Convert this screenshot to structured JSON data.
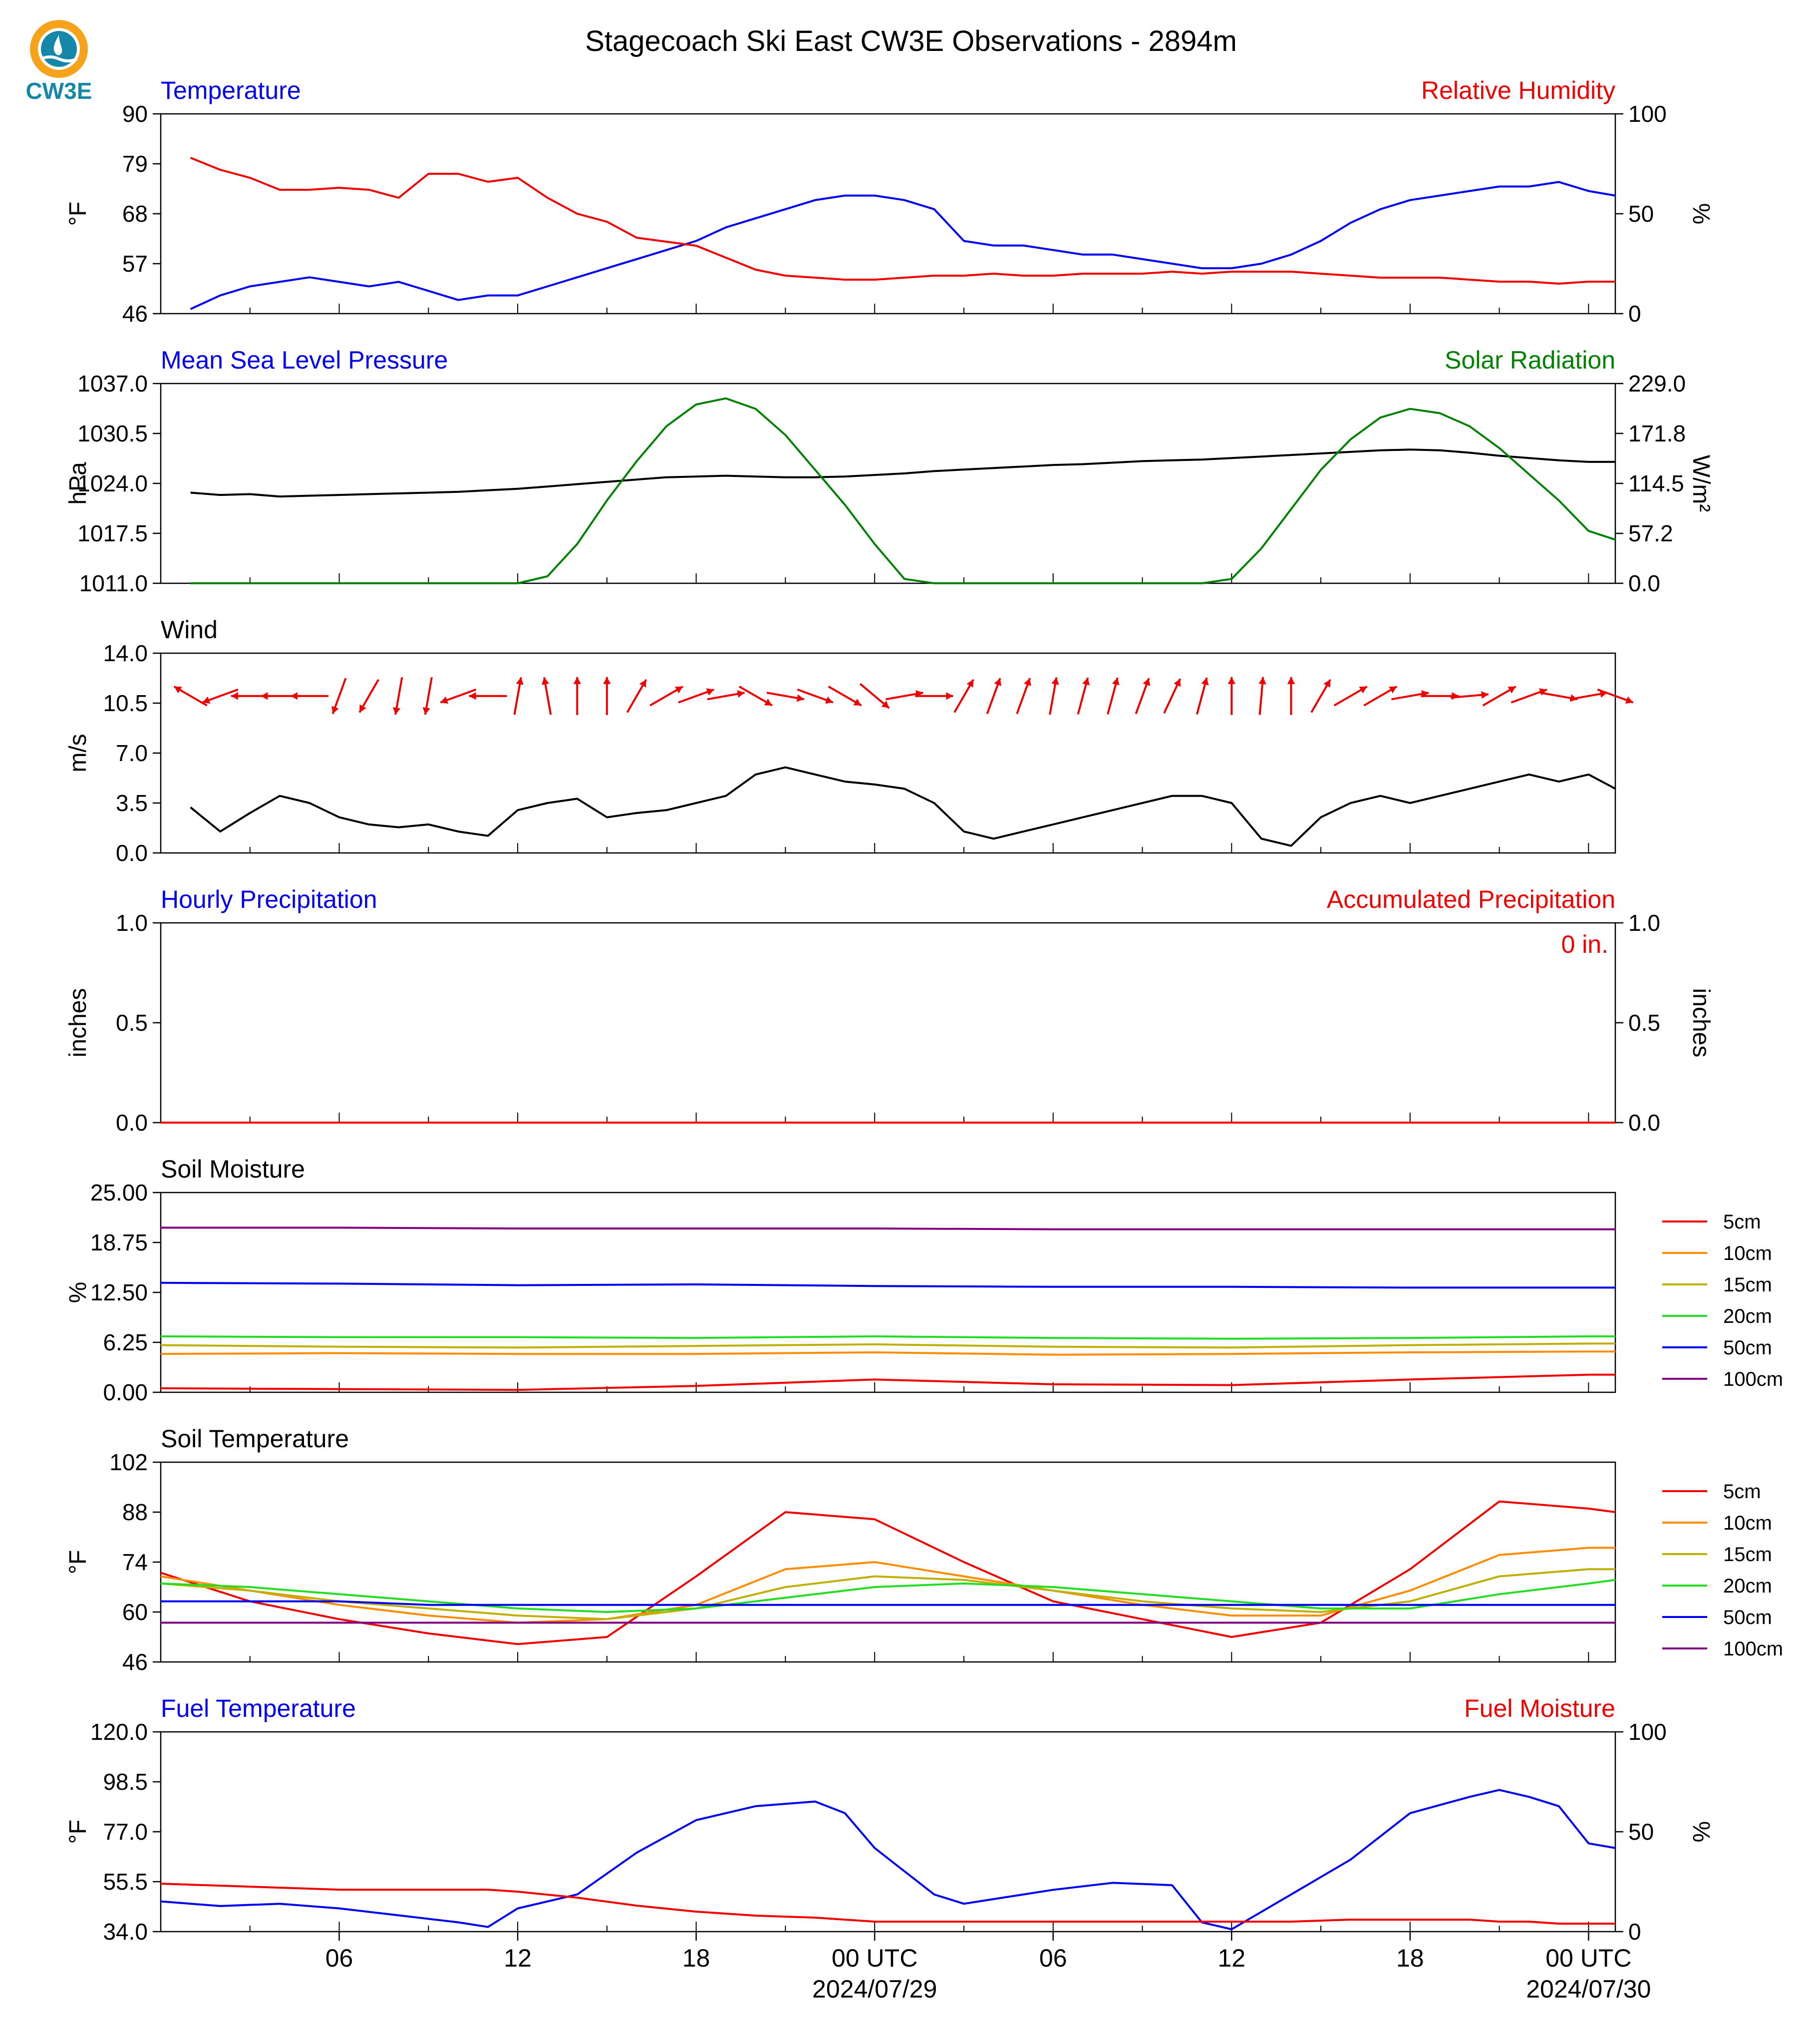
{
  "page": {
    "title": "Stagecoach Ski East CW3E Observations - 2894m",
    "logo_text": "CW3E",
    "x_ticks": [
      {
        "label": "06",
        "hour": 6
      },
      {
        "label": "12",
        "hour": 12
      },
      {
        "label": "18",
        "hour": 18
      },
      {
        "label": "00 UTC",
        "hour": 24,
        "date": "2024/07/29"
      },
      {
        "label": "06",
        "hour": 30
      },
      {
        "label": "12",
        "hour": 36
      },
      {
        "label": "18",
        "hour": 42
      },
      {
        "label": "00 UTC",
        "hour": 48,
        "date": "2024/07/30"
      }
    ]
  },
  "chart_data": [
    {
      "id": "temp-rh",
      "type": "line",
      "left_title": "Temperature",
      "right_title": "Relative Humidity",
      "ylabel_left": "°F",
      "ylabel_right": "%",
      "yticks_left": [
        "46",
        "57",
        "68",
        "79",
        "90"
      ],
      "yticks_right": [
        "0",
        "50",
        "100"
      ],
      "ylim_left": [
        46,
        90
      ],
      "ylim_right": [
        0,
        100
      ],
      "x": [
        1,
        2,
        3,
        4,
        5,
        6,
        7,
        8,
        9,
        10,
        11,
        12,
        13,
        14,
        15,
        16,
        17,
        18,
        19,
        20,
        21,
        22,
        23,
        24,
        25,
        26,
        27,
        28,
        29,
        30,
        31,
        32,
        33,
        34,
        35,
        36,
        37,
        38,
        39,
        40,
        41,
        42,
        43,
        44,
        45,
        46,
        47,
        48,
        48.9
      ],
      "series": [
        {
          "name": "Temperature",
          "axis": "left",
          "color": "#0000ee",
          "values": [
            47,
            50,
            52,
            53,
            54,
            53,
            52,
            53,
            51,
            49,
            50,
            50,
            52,
            54,
            56,
            58,
            60,
            62,
            65,
            67,
            69,
            71,
            72,
            72,
            71,
            69,
            62,
            61,
            61,
            60,
            59,
            59,
            58,
            57,
            56,
            56,
            57,
            59,
            62,
            66,
            69,
            71,
            72,
            73,
            74,
            74,
            75,
            73,
            72
          ]
        },
        {
          "name": "Relative Humidity",
          "axis": "right",
          "color": "#ee0000",
          "values": [
            78,
            72,
            68,
            62,
            62,
            63,
            62,
            58,
            70,
            70,
            66,
            68,
            58,
            50,
            46,
            38,
            36,
            34,
            28,
            22,
            19,
            18,
            17,
            17,
            18,
            19,
            19,
            20,
            19,
            19,
            20,
            20,
            20,
            21,
            20,
            21,
            21,
            21,
            20,
            19,
            18,
            18,
            18,
            17,
            16,
            16,
            15,
            16,
            16
          ]
        }
      ]
    },
    {
      "id": "pressure-solar",
      "type": "line",
      "left_title": "Mean Sea Level Pressure",
      "right_title": "Solar Radiation",
      "ylabel_left": "hPa",
      "ylabel_right": "W/m²",
      "yticks_left": [
        "1011.0",
        "1017.5",
        "1024.0",
        "1030.5",
        "1037.0"
      ],
      "yticks_right": [
        "0.0",
        "57.2",
        "114.5",
        "171.8",
        "229.0"
      ],
      "ylim_left": [
        1011.0,
        1037.0
      ],
      "ylim_right": [
        0.0,
        229.0
      ],
      "x": [
        1,
        2,
        3,
        4,
        5,
        6,
        7,
        8,
        9,
        10,
        11,
        12,
        13,
        14,
        15,
        16,
        17,
        18,
        19,
        20,
        21,
        22,
        23,
        24,
        25,
        26,
        27,
        28,
        29,
        30,
        31,
        32,
        33,
        34,
        35,
        36,
        37,
        38,
        39,
        40,
        41,
        42,
        43,
        44,
        45,
        46,
        47,
        48,
        48.9
      ],
      "series": [
        {
          "name": "Mean Sea Level Pressure",
          "axis": "left",
          "color": "#000000",
          "values": [
            1022.8,
            1022.5,
            1022.6,
            1022.3,
            1022.4,
            1022.5,
            1022.6,
            1022.7,
            1022.8,
            1022.9,
            1023.1,
            1023.3,
            1023.6,
            1023.9,
            1024.2,
            1024.5,
            1024.8,
            1024.9,
            1025.0,
            1024.9,
            1024.8,
            1024.8,
            1024.9,
            1025.1,
            1025.3,
            1025.6,
            1025.8,
            1026.0,
            1026.2,
            1026.4,
            1026.5,
            1026.7,
            1026.9,
            1027.0,
            1027.1,
            1027.3,
            1027.5,
            1027.7,
            1027.9,
            1028.1,
            1028.3,
            1028.4,
            1028.3,
            1028.0,
            1027.6,
            1027.3,
            1027.0,
            1026.8,
            1026.8
          ]
        },
        {
          "name": "Solar Radiation",
          "axis": "right",
          "color": "#008000",
          "values": [
            0,
            0,
            0,
            0,
            0,
            0,
            0,
            0,
            0,
            0,
            0,
            0,
            8,
            45,
            95,
            140,
            180,
            205,
            212,
            200,
            170,
            130,
            90,
            45,
            5,
            0,
            0,
            0,
            0,
            0,
            0,
            0,
            0,
            0,
            0,
            5,
            40,
            85,
            130,
            165,
            190,
            200,
            195,
            180,
            155,
            125,
            95,
            60,
            50
          ]
        }
      ]
    },
    {
      "id": "wind",
      "type": "line",
      "left_title": "Wind",
      "ylabel_left": "m/s",
      "yticks_left": [
        "0.0",
        "3.5",
        "7.0",
        "10.5",
        "14.0"
      ],
      "ylim_left": [
        0.0,
        14.0
      ],
      "x": [
        1,
        2,
        3,
        4,
        5,
        6,
        7,
        8,
        9,
        10,
        11,
        12,
        13,
        14,
        15,
        16,
        17,
        18,
        19,
        20,
        21,
        22,
        23,
        24,
        25,
        26,
        27,
        28,
        29,
        30,
        31,
        32,
        33,
        34,
        35,
        36,
        37,
        38,
        39,
        40,
        41,
        42,
        43,
        44,
        45,
        46,
        47,
        48,
        48.9
      ],
      "series": [
        {
          "name": "Wind",
          "axis": "left",
          "color": "#000000",
          "values": [
            3.2,
            1.5,
            2.8,
            4.0,
            3.5,
            2.5,
            2.0,
            1.8,
            2.0,
            1.5,
            1.2,
            3.0,
            3.5,
            3.8,
            2.5,
            2.8,
            3.0,
            3.5,
            4.0,
            5.5,
            6.0,
            5.5,
            5.0,
            4.8,
            4.5,
            3.5,
            1.5,
            1.0,
            1.5,
            2.0,
            2.5,
            3.0,
            3.5,
            4.0,
            4.0,
            3.5,
            1.0,
            0.5,
            2.5,
            3.5,
            4.0,
            3.5,
            4.0,
            4.5,
            5.0,
            5.5,
            5.0,
            5.5,
            4.5
          ]
        }
      ],
      "barbs_directions_deg": [
        300,
        250,
        270,
        270,
        270,
        200,
        210,
        190,
        190,
        250,
        270,
        10,
        350,
        0,
        0,
        30,
        60,
        70,
        80,
        120,
        100,
        110,
        120,
        130,
        80,
        90,
        30,
        20,
        20,
        10,
        15,
        15,
        20,
        25,
        15,
        0,
        5,
        0,
        30,
        60,
        60,
        80,
        90,
        85,
        60,
        70,
        100,
        80,
        110
      ]
    },
    {
      "id": "precip",
      "type": "line",
      "left_title": "Hourly Precipitation",
      "right_title": "Accumulated Precipitation",
      "ylabel_left": "inches",
      "ylabel_right": "inches",
      "yticks_left": [
        "0.0",
        "0.5",
        "1.0"
      ],
      "yticks_right": [
        "0.0",
        "0.5",
        "1.0"
      ],
      "ylim_left": [
        0.0,
        1.0
      ],
      "ylim_right": [
        0.0,
        1.0
      ],
      "annotation": "0 in.",
      "x": [
        0,
        48.9
      ],
      "series": [
        {
          "name": "Hourly Precipitation",
          "axis": "left",
          "color": "#0000ee",
          "values": [
            0,
            0
          ]
        },
        {
          "name": "Accumulated Precipitation",
          "axis": "right",
          "color": "#ee0000",
          "values": [
            0,
            0
          ]
        }
      ]
    },
    {
      "id": "soil-moisture",
      "type": "line",
      "left_title": "Soil Moisture",
      "ylabel_left": "%",
      "yticks_left": [
        "0.00",
        "6.25",
        "12.50",
        "18.75",
        "25.00"
      ],
      "ylim_left": [
        0.0,
        25.0
      ],
      "x": [
        0,
        6,
        12,
        18,
        24,
        30,
        36,
        42,
        48,
        48.9
      ],
      "series": [
        {
          "name": "5cm",
          "color": "#ee0000",
          "values": [
            0.5,
            0.4,
            0.3,
            0.8,
            1.6,
            1.0,
            0.9,
            1.6,
            2.2,
            2.2
          ]
        },
        {
          "name": "10cm",
          "color": "#ff8c00",
          "values": [
            4.8,
            4.9,
            4.8,
            4.8,
            5.0,
            4.7,
            4.8,
            5.0,
            5.1,
            5.1
          ]
        },
        {
          "name": "15cm",
          "color": "#bdb000",
          "values": [
            5.9,
            5.7,
            5.6,
            5.8,
            6.0,
            5.7,
            5.6,
            5.9,
            6.1,
            6.1
          ]
        },
        {
          "name": "20cm",
          "color": "#22dd22",
          "values": [
            7.0,
            6.9,
            6.9,
            6.8,
            7.0,
            6.8,
            6.7,
            6.8,
            7.0,
            7.0
          ]
        },
        {
          "name": "50cm",
          "color": "#0000ee",
          "values": [
            13.7,
            13.6,
            13.4,
            13.5,
            13.3,
            13.2,
            13.2,
            13.1,
            13.1,
            13.1
          ]
        },
        {
          "name": "100cm",
          "color": "#800080",
          "values": [
            20.6,
            20.6,
            20.5,
            20.5,
            20.5,
            20.4,
            20.4,
            20.4,
            20.4,
            20.4
          ]
        }
      ]
    },
    {
      "id": "soil-temp",
      "type": "line",
      "left_title": "Soil Temperature",
      "ylabel_left": "°F",
      "yticks_left": [
        "46",
        "60",
        "74",
        "88",
        "102"
      ],
      "ylim_left": [
        46,
        102
      ],
      "x": [
        0,
        3,
        6,
        9,
        12,
        15,
        18,
        21,
        24,
        27,
        30,
        33,
        36,
        39,
        42,
        45,
        48,
        48.9
      ],
      "series": [
        {
          "name": "5cm",
          "color": "#ee0000",
          "values": [
            71,
            63,
            58,
            54,
            51,
            53,
            70,
            88,
            86,
            74,
            63,
            58,
            53,
            57,
            72,
            91,
            89,
            88
          ]
        },
        {
          "name": "10cm",
          "color": "#ff8c00",
          "values": [
            70,
            66,
            62,
            59,
            57,
            58,
            62,
            72,
            74,
            70,
            66,
            62,
            59,
            59,
            66,
            76,
            78,
            78
          ]
        },
        {
          "name": "15cm",
          "color": "#bdb000",
          "values": [
            68,
            66,
            63,
            61,
            59,
            58,
            61,
            67,
            70,
            69,
            66,
            63,
            61,
            60,
            63,
            70,
            72,
            72
          ]
        },
        {
          "name": "20cm",
          "color": "#22dd22",
          "values": [
            68,
            67,
            65,
            63,
            61,
            60,
            61,
            64,
            67,
            68,
            67,
            65,
            63,
            61,
            61,
            65,
            68,
            69
          ]
        },
        {
          "name": "50cm",
          "color": "#0000ee",
          "values": [
            63,
            63,
            63,
            62,
            62,
            62,
            62,
            62,
            62,
            62,
            62,
            62,
            62,
            62,
            62,
            62,
            62,
            62
          ]
        },
        {
          "name": "100cm",
          "color": "#800080",
          "values": [
            57,
            57,
            57,
            57,
            57,
            57,
            57,
            57,
            57,
            57,
            57,
            57,
            57,
            57,
            57,
            57,
            57,
            57
          ]
        }
      ]
    },
    {
      "id": "fuel",
      "type": "line",
      "left_title": "Fuel Temperature",
      "right_title": "Fuel Moisture",
      "ylabel_left": "°F",
      "ylabel_right": "%",
      "yticks_left": [
        "34.0",
        "55.5",
        "77.0",
        "98.5",
        "120.0"
      ],
      "yticks_right": [
        "0",
        "50",
        "100"
      ],
      "ylim_left": [
        34.0,
        120.0
      ],
      "ylim_right": [
        0,
        100
      ],
      "x": [
        0,
        2,
        4,
        6,
        8,
        10,
        11,
        12,
        14,
        16,
        18,
        20,
        22,
        23,
        24,
        26,
        27,
        28,
        30,
        32,
        34,
        35,
        36,
        38,
        40,
        42,
        44,
        45,
        46,
        47,
        48,
        48.9
      ],
      "series": [
        {
          "name": "Fuel Temperature",
          "axis": "left",
          "color": "#0000ee",
          "values": [
            47,
            45,
            46,
            44,
            41,
            38,
            36,
            44,
            50,
            68,
            82,
            88,
            90,
            85,
            70,
            50,
            46,
            48,
            52,
            55,
            54,
            38,
            35,
            50,
            65,
            85,
            92,
            95,
            92,
            88,
            72,
            70
          ]
        },
        {
          "name": "Fuel Moisture",
          "axis": "right",
          "color": "#ee0000",
          "values": [
            24,
            23,
            22,
            21,
            21,
            21,
            21,
            20,
            17,
            13,
            10,
            8,
            7,
            6,
            5,
            5,
            5,
            5,
            5,
            5,
            5,
            5,
            5,
            5,
            6,
            6,
            6,
            5,
            5,
            4,
            4,
            4
          ]
        }
      ]
    }
  ]
}
